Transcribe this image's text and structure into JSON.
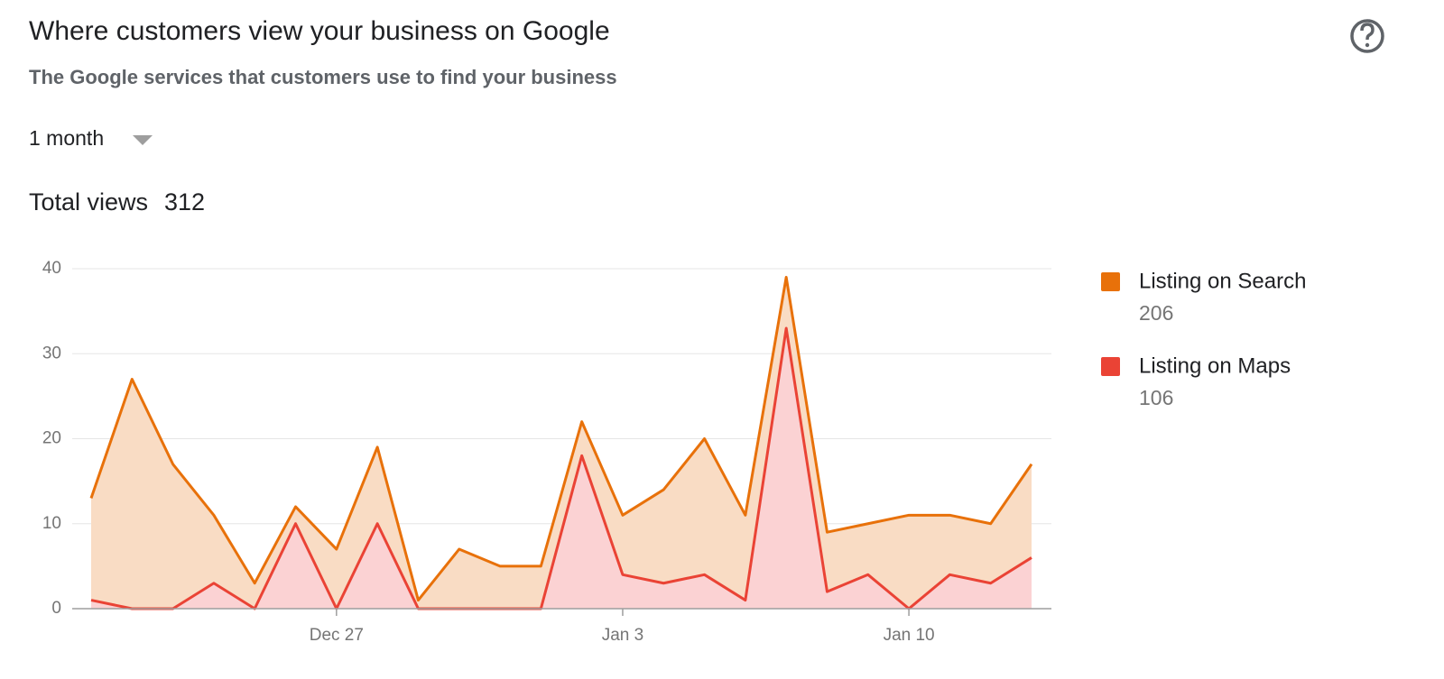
{
  "chart_data": {
    "type": "stacked-area",
    "title": "Where customers view your business on Google",
    "subtitle": "The Google services that customers use to find your business",
    "period": "1 month",
    "total_label": "Total views",
    "total": 312,
    "categories": [
      null,
      null,
      null,
      null,
      null,
      null,
      "Dec 27",
      null,
      null,
      null,
      null,
      null,
      null,
      "Jan 3",
      null,
      null,
      null,
      null,
      null,
      null,
      "Jan 10",
      null,
      null,
      null
    ],
    "series": [
      {
        "name": "Listing on Search",
        "color": "#e8710a",
        "fill": "#f9dcc4",
        "total": 206,
        "values": [
          12,
          27,
          17,
          8,
          3,
          2,
          7,
          9,
          1,
          7,
          5,
          5,
          4,
          7,
          11,
          16,
          10,
          6,
          7,
          6,
          11,
          7,
          7,
          11
        ]
      },
      {
        "name": "Listing on Maps",
        "color": "#ea4335",
        "fill": "#fbd2d3",
        "total": 106,
        "values": [
          1,
          0,
          0,
          3,
          0,
          10,
          0,
          10,
          0,
          0,
          0,
          0,
          18,
          4,
          3,
          4,
          1,
          33,
          2,
          4,
          0,
          4,
          3,
          6
        ]
      }
    ],
    "ylim": [
      0,
      40
    ],
    "yticks": [
      0,
      10,
      20,
      30,
      40
    ],
    "grid": true,
    "legend": "right"
  }
}
